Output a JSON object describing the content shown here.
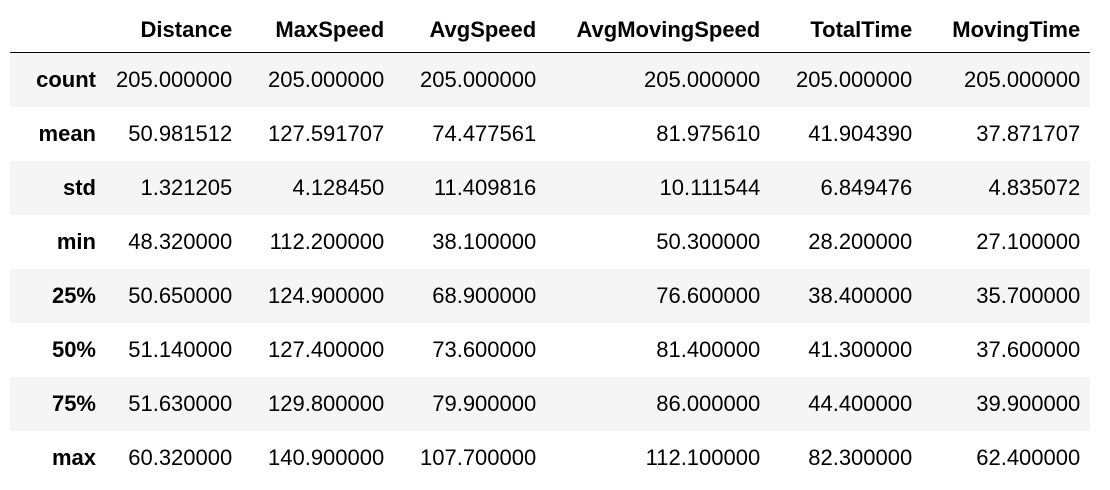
{
  "table": {
    "columns": [
      "",
      "Distance",
      "MaxSpeed",
      "AvgSpeed",
      "AvgMovingSpeed",
      "TotalTime",
      "MovingTime"
    ],
    "rows": [
      {
        "label": "count",
        "cells": [
          "205.000000",
          "205.000000",
          "205.000000",
          "205.000000",
          "205.000000",
          "205.000000"
        ]
      },
      {
        "label": "mean",
        "cells": [
          "50.981512",
          "127.591707",
          "74.477561",
          "81.975610",
          "41.904390",
          "37.871707"
        ]
      },
      {
        "label": "std",
        "cells": [
          "1.321205",
          "4.128450",
          "11.409816",
          "10.111544",
          "6.849476",
          "4.835072"
        ]
      },
      {
        "label": "min",
        "cells": [
          "48.320000",
          "112.200000",
          "38.100000",
          "50.300000",
          "28.200000",
          "27.100000"
        ]
      },
      {
        "label": "25%",
        "cells": [
          "50.650000",
          "124.900000",
          "68.900000",
          "76.600000",
          "38.400000",
          "35.700000"
        ]
      },
      {
        "label": "50%",
        "cells": [
          "51.140000",
          "127.400000",
          "73.600000",
          "81.400000",
          "41.300000",
          "37.600000"
        ]
      },
      {
        "label": "75%",
        "cells": [
          "51.630000",
          "129.800000",
          "79.900000",
          "86.000000",
          "44.400000",
          "39.900000"
        ]
      },
      {
        "label": "max",
        "cells": [
          "60.320000",
          "140.900000",
          "107.700000",
          "112.100000",
          "82.300000",
          "62.400000"
        ]
      }
    ]
  }
}
